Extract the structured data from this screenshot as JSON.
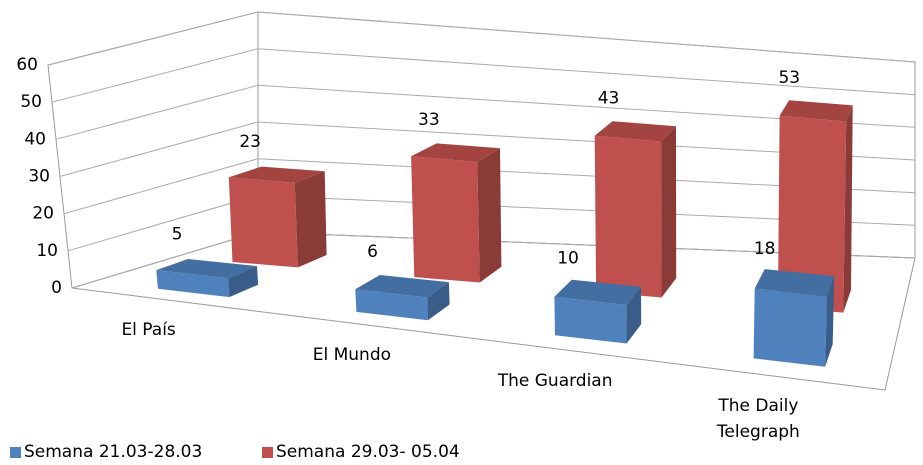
{
  "chart_data": {
    "type": "bar3d",
    "categories": [
      "El País",
      "El Mundo",
      "The Guardian",
      "The Daily Telegraph"
    ],
    "series": [
      {
        "name": "Semana 21.03-28.03",
        "color": "#4f81bd",
        "values": [
          5,
          6,
          10,
          18
        ]
      },
      {
        "name": "Semana 29.03- 05.04",
        "color": "#c0504d",
        "values": [
          23,
          33,
          43,
          53
        ]
      }
    ],
    "ylim": [
      0,
      60
    ],
    "yticks": [
      0,
      10,
      20,
      30,
      40,
      50,
      60
    ],
    "grid": true,
    "legend": "bottom-left"
  }
}
